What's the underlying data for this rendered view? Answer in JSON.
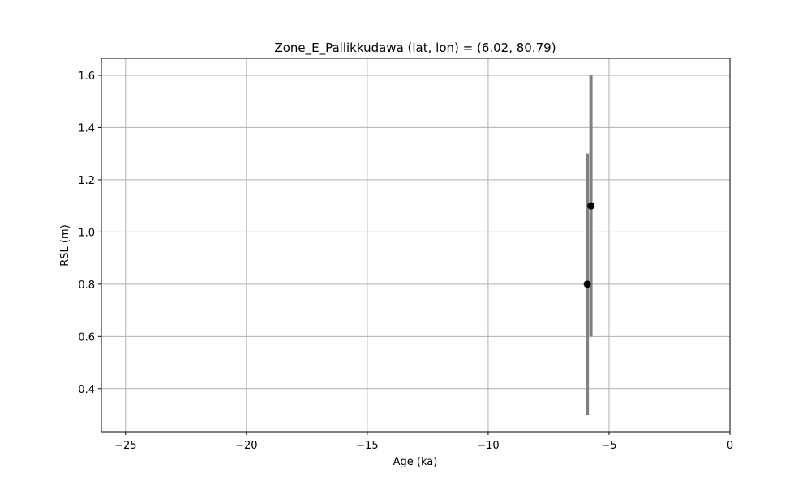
{
  "chart_data": {
    "type": "scatter",
    "title": "Zone_E_Pallikkudawa (lat, lon) = (6.02, 80.79)",
    "xlabel": "Age (ka)",
    "ylabel": "RSL (m)",
    "xlim": [
      -26,
      0
    ],
    "ylim": [
      0.235,
      1.665
    ],
    "xticks": [
      -25,
      -20,
      -15,
      -10,
      -5,
      0
    ],
    "xtick_labels": [
      "−25",
      "−20",
      "−15",
      "−10",
      "−5",
      "0"
    ],
    "yticks": [
      0.4,
      0.6,
      0.8,
      1.0,
      1.2,
      1.4,
      1.6
    ],
    "ytick_labels": [
      "0.4",
      "0.6",
      "0.8",
      "1.0",
      "1.2",
      "1.4",
      "1.6"
    ],
    "grid": true,
    "points": [
      {
        "x": -5.9,
        "y": 0.8,
        "y_low": 0.3,
        "y_high": 1.3
      },
      {
        "x": -5.75,
        "y": 1.1,
        "y_low": 0.6,
        "y_high": 1.6
      }
    ],
    "colors": {
      "errorbar": "#808080",
      "marker": "#000000",
      "grid": "#b0b0b0"
    }
  }
}
